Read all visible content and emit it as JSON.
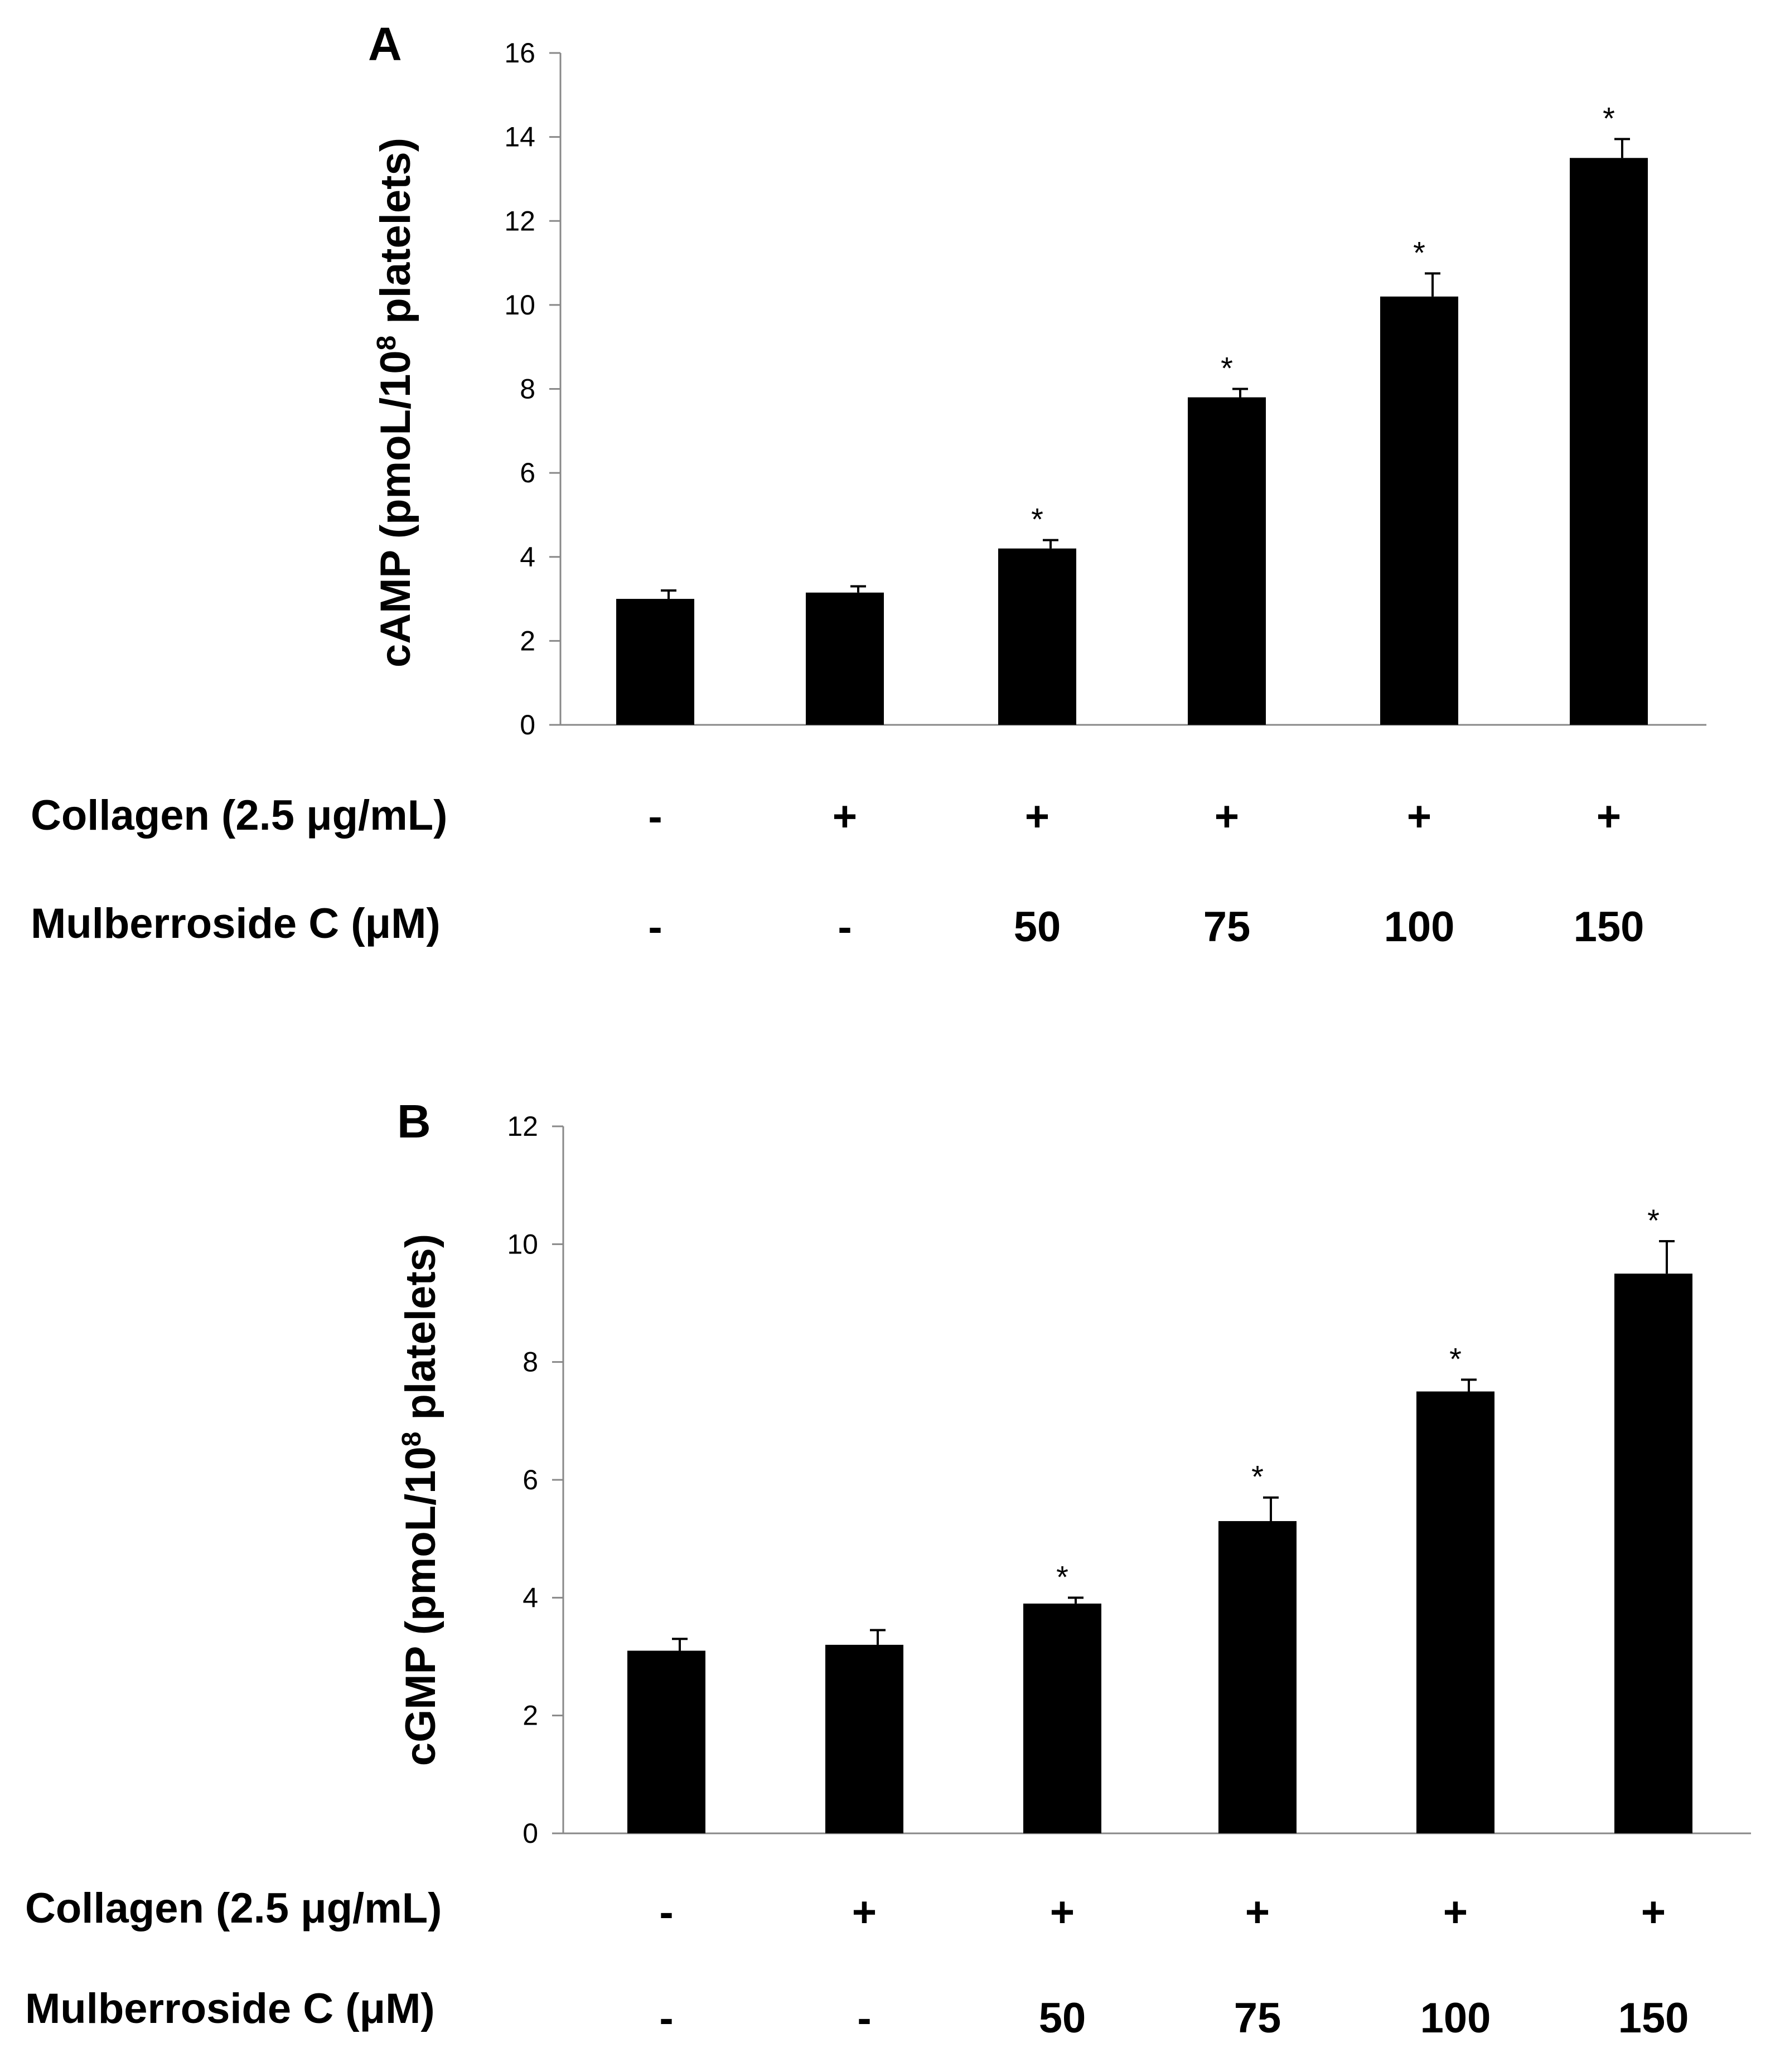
{
  "chart_data": [
    {
      "type": "bar",
      "panel_label": "A",
      "ylabel_main": "cAMP (pmoL/10",
      "ylabel_sup": "8",
      "ylabel_tail": " platelets)",
      "ylim": [
        0,
        16
      ],
      "yticks": [
        "0",
        "2",
        "4",
        "6",
        "8",
        "10",
        "12",
        "14",
        "16"
      ],
      "values": [
        3.0,
        3.15,
        4.2,
        7.8,
        10.2,
        13.5
      ],
      "errors": [
        0.2,
        0.15,
        0.2,
        0.2,
        0.55,
        0.45
      ],
      "significance": [
        "",
        "",
        "*",
        "*",
        "*",
        "*"
      ],
      "collagen_label": "Collagen (2.5 μg/mL)",
      "collagen": [
        "-",
        "+",
        "+",
        "+",
        "+",
        "+"
      ],
      "mulberroside_label": "Mulberroside C (μM)",
      "mulberroside": [
        "-",
        "-",
        "50",
        "75",
        "100",
        "150"
      ]
    },
    {
      "type": "bar",
      "panel_label": "B",
      "ylabel_main": "cGMP (pmoL/10",
      "ylabel_sup": "8",
      "ylabel_tail": " platelets)",
      "ylim": [
        0,
        12
      ],
      "yticks": [
        "0",
        "2",
        "4",
        "6",
        "8",
        "10",
        "12"
      ],
      "values": [
        3.1,
        3.2,
        3.9,
        5.3,
        7.5,
        9.5
      ],
      "errors": [
        0.2,
        0.25,
        0.1,
        0.4,
        0.2,
        0.55
      ],
      "significance": [
        "",
        "",
        "*",
        "*",
        "*",
        "*"
      ],
      "collagen_label": "Collagen (2.5 μg/mL)",
      "collagen": [
        "-",
        "+",
        "+",
        "+",
        "+",
        "+"
      ],
      "mulberroside_label": "Mulberroside C (μM)",
      "mulberroside": [
        "-",
        "-",
        "50",
        "75",
        "100",
        "150"
      ]
    }
  ]
}
